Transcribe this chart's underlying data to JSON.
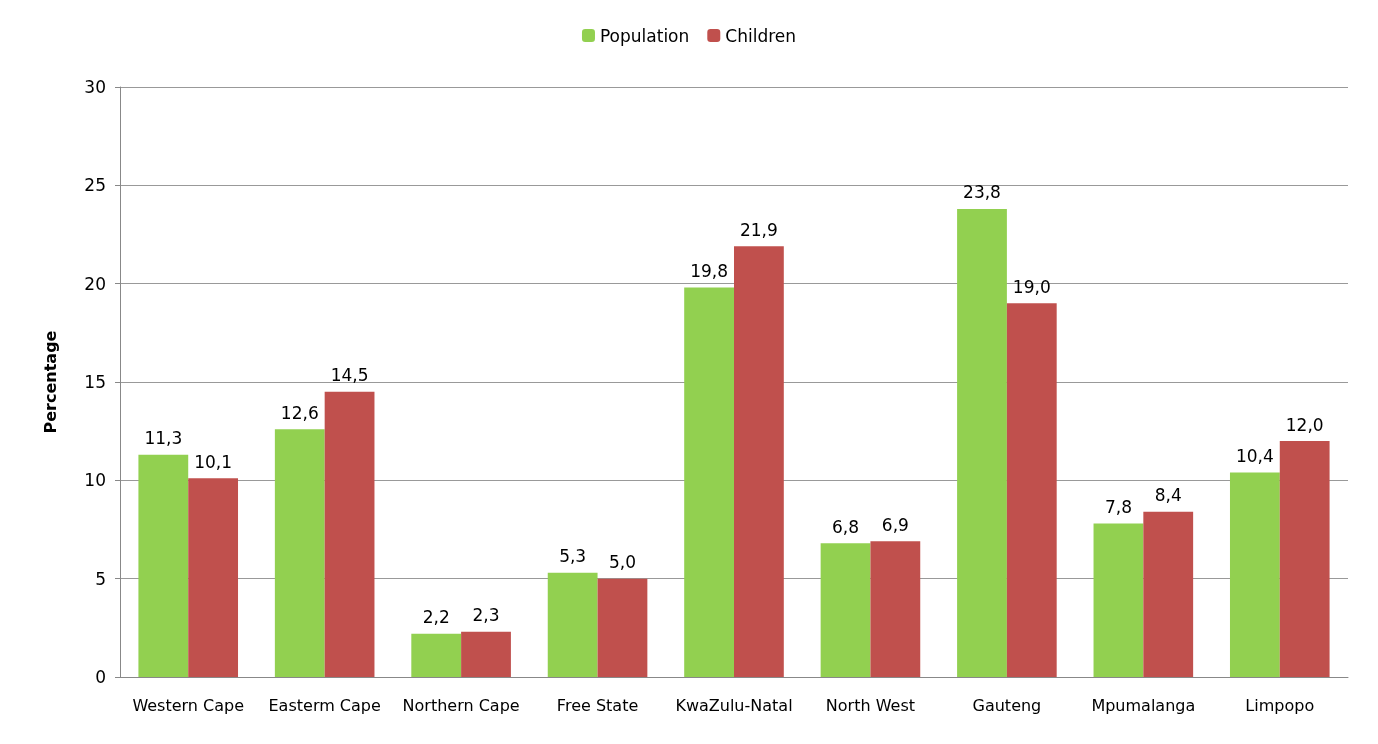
{
  "chart_data": {
    "type": "bar",
    "ylabel": "Percentage",
    "categories": [
      "Western Cape",
      "Easterm Cape",
      "Northern Cape",
      "Free State",
      "KwaZulu-Natal",
      "North West",
      "Gauteng",
      "Mpumalanga",
      "Limpopo"
    ],
    "series": [
      {
        "name": "Population",
        "color": "#92d050",
        "values": [
          11.3,
          12.6,
          2.2,
          5.3,
          19.8,
          6.8,
          23.8,
          7.8,
          10.4
        ],
        "value_labels": [
          "11,3",
          "12,6",
          "2,2",
          "5,3",
          "19,8",
          "6,8",
          "23,8",
          "7,8",
          "10,4"
        ]
      },
      {
        "name": "Children",
        "color": "#c0504d",
        "values": [
          10.1,
          14.5,
          2.3,
          5.0,
          21.9,
          6.9,
          19.0,
          8.4,
          12.0
        ],
        "value_labels": [
          "10,1",
          "14,5",
          "2,3",
          "5,0",
          "21,9",
          "6,9",
          "19,0",
          "8,4",
          "12,0"
        ]
      }
    ],
    "ylim": [
      0,
      30
    ],
    "yticks": [
      0,
      5,
      10,
      15,
      20,
      25,
      30
    ],
    "grid": "y",
    "legend": "top"
  }
}
